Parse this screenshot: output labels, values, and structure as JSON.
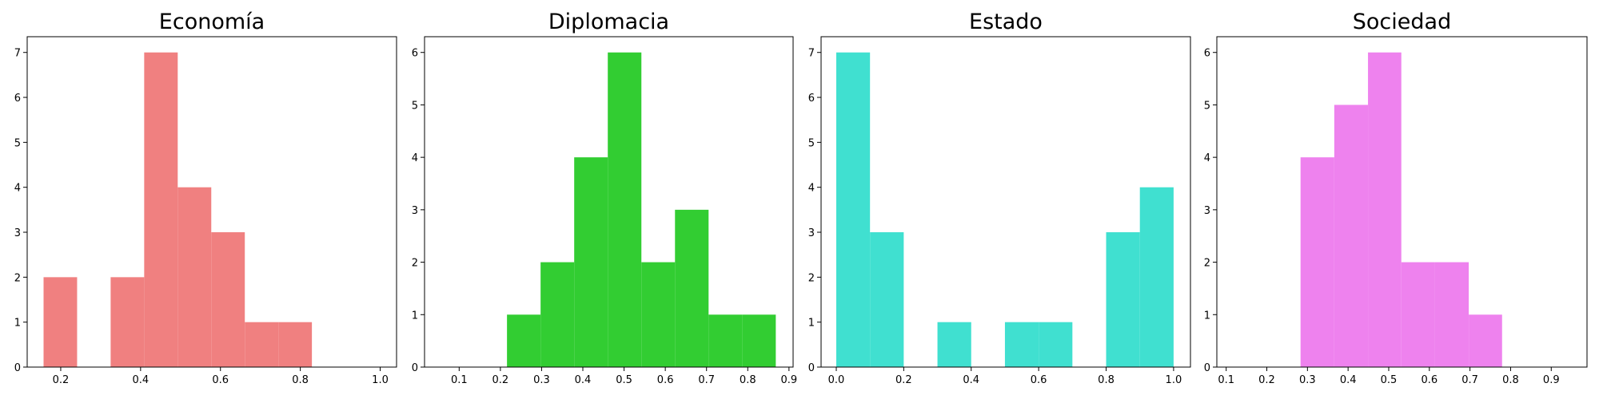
{
  "chart_data": [
    {
      "type": "histogram",
      "title": "Economía",
      "color": "#f08080",
      "bins": [
        0.157,
        0.241,
        0.325,
        0.409,
        0.493,
        0.577,
        0.661,
        0.745,
        0.829
      ],
      "values": [
        2,
        0,
        2,
        7,
        4,
        3,
        1,
        1
      ],
      "xlim": [
        0.116,
        1.041
      ],
      "ylim": [
        0,
        7.35
      ],
      "xticks": [
        0.2,
        0.4,
        0.6,
        0.8,
        {
          "value": 1,
          "label": "1.0"
        }
      ],
      "yticks": [
        0,
        1,
        2,
        3,
        4,
        5,
        6,
        7
      ]
    },
    {
      "type": "histogram",
      "title": "Diplomacia",
      "color": "#32cd32",
      "bins": [
        0.216,
        0.2975,
        0.379,
        0.4605,
        0.542,
        0.6235,
        0.705,
        0.7865,
        0.868
      ],
      "values": [
        1,
        2,
        4,
        6,
        2,
        3,
        1,
        1
      ],
      "xlim": [
        0.016,
        0.91
      ],
      "ylim": [
        0,
        6.3
      ],
      "xticks": [
        0.1,
        0.2,
        0.3,
        0.4,
        0.5,
        0.6,
        0.7,
        0.8,
        0.9
      ],
      "yticks": [
        0,
        1,
        2,
        3,
        4,
        5,
        6
      ]
    },
    {
      "type": "histogram",
      "title": "Estado",
      "color": "#40e0d0",
      "bins": [
        0,
        0.1,
        0.2,
        0.3,
        0.4,
        0.5,
        0.6,
        0.7,
        0.8,
        0.9,
        1
      ],
      "values": [
        7,
        3,
        0,
        1,
        0,
        1,
        1,
        0,
        3,
        4
      ],
      "xlim": [
        -0.045,
        1.05
      ],
      "ylim": [
        0,
        7.35
      ],
      "xticks": [
        {
          "value": 0,
          "label": "0.0"
        },
        0.2,
        0.4,
        0.6,
        0.8,
        {
          "value": 1,
          "label": "1.0"
        }
      ],
      "yticks": [
        0,
        1,
        2,
        3,
        4,
        5,
        6,
        7
      ]
    },
    {
      "type": "histogram",
      "title": "Sociedad",
      "color": "#ee82ee",
      "bins": [
        0.283,
        0.366,
        0.449,
        0.531,
        0.614,
        0.697,
        0.779
      ],
      "values": [
        4,
        5,
        6,
        2,
        2,
        1
      ],
      "xlim": [
        0.077,
        0.988
      ],
      "ylim": [
        0,
        6.3
      ],
      "xticks": [
        0.1,
        0.2,
        0.3,
        0.4,
        0.5,
        0.6,
        0.7,
        0.8,
        0.9
      ],
      "yticks": [
        0,
        1,
        2,
        3,
        4,
        5,
        6
      ]
    }
  ]
}
